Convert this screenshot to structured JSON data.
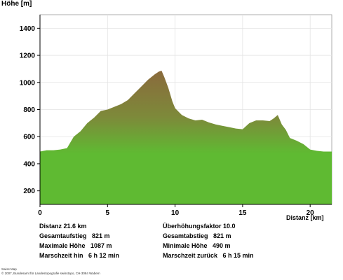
{
  "chart_data": {
    "type": "area",
    "ylabel": "Höhe [m]",
    "xlabel": "Distanz [km]",
    "xlim": [
      0,
      21.6
    ],
    "ylim": [
      100,
      1500
    ],
    "yticks": [
      200,
      400,
      600,
      800,
      1000,
      1200,
      1400
    ],
    "xticks": [
      0,
      5,
      10,
      15,
      20
    ],
    "grid": true,
    "fill_top_color": "#8a6a3c",
    "fill_bottom_color": "#5fba32",
    "x": [
      0,
      0.5,
      1.0,
      1.5,
      2.0,
      2.5,
      3.0,
      3.5,
      4.0,
      4.5,
      5.0,
      5.5,
      6.0,
      6.5,
      7.0,
      7.5,
      8.0,
      8.5,
      8.8,
      9.0,
      9.2,
      9.5,
      9.8,
      10.0,
      10.5,
      11.0,
      11.5,
      12.0,
      12.5,
      13.0,
      13.5,
      14.0,
      14.5,
      15.0,
      15.5,
      16.0,
      16.5,
      17.0,
      17.3,
      17.6,
      17.9,
      18.2,
      18.5,
      19.0,
      19.5,
      20.0,
      20.5,
      21.0,
      21.6
    ],
    "y": [
      490,
      500,
      500,
      505,
      515,
      600,
      640,
      700,
      740,
      790,
      800,
      820,
      840,
      870,
      920,
      970,
      1020,
      1060,
      1080,
      1087,
      1040,
      960,
      860,
      810,
      760,
      735,
      720,
      725,
      705,
      690,
      680,
      670,
      660,
      655,
      700,
      720,
      720,
      715,
      735,
      760,
      690,
      650,
      590,
      570,
      545,
      505,
      495,
      490,
      490
    ]
  },
  "stats": {
    "distanz": "Distanz 21.6 km",
    "gesamtaufstieg": "Gesamtaufstieg   821 m",
    "maximale_hoehe": "Maximale Höhe   1087 m",
    "marschzeit_hin": "Marschzeit hin   6 h 12 min",
    "ueberhoehung": "Überhöhungsfaktor 10.0",
    "gesamtabstieg": "Gesamtabstieg   821 m",
    "minimale_hoehe": "Minimale Höhe   490 m",
    "marschzeit_zurueck": "Marschzeit zurück   6 h 15 min"
  },
  "footer": {
    "line1": "Swiss Map",
    "line2": "© 2007, Bundesamt für Landestopografie swisstopo, CH-3084 Wabern"
  }
}
